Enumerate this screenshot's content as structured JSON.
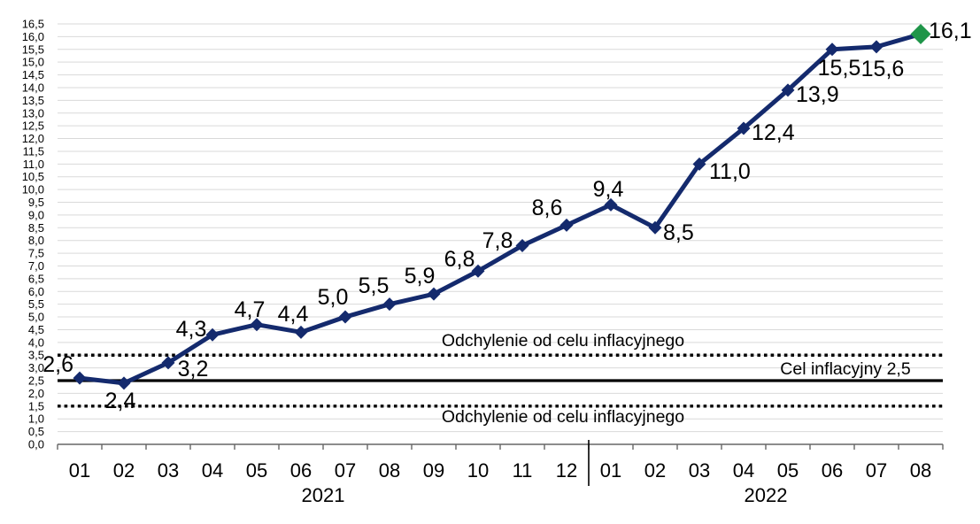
{
  "chart_data": {
    "type": "line",
    "title": "",
    "x_axis": {
      "months": [
        "01",
        "02",
        "03",
        "04",
        "05",
        "06",
        "07",
        "08",
        "09",
        "10",
        "11",
        "12",
        "01",
        "02",
        "03",
        "04",
        "05",
        "06",
        "07",
        "08"
      ],
      "year_groups": [
        {
          "label": "2021",
          "month_count": 12
        },
        {
          "label": "2022",
          "month_count": 8
        }
      ]
    },
    "y_axis": {
      "min": 0,
      "max": 16.5,
      "step": 0.5,
      "tick_labels_top_down": [
        "16,5",
        "16,0",
        "15,5",
        "15,0",
        "14,5",
        "14,0",
        "13,5",
        "13,0",
        "12,5",
        "12,0",
        "11,5",
        "11,0",
        "10,5",
        "10,0",
        "9,5",
        "9,0",
        "8,5",
        "8,0",
        "7,5",
        "7,0",
        "6,5",
        "6,0",
        "5,5",
        "5,0",
        "4,5",
        "4,0",
        "3,5",
        "3,0",
        "2,5",
        "2,0",
        "1,5",
        "1,0",
        "0,5",
        "0,0"
      ]
    },
    "series": [
      {
        "values": [
          2.6,
          2.4,
          3.2,
          4.3,
          4.7,
          4.4,
          5.0,
          5.5,
          5.9,
          6.8,
          7.8,
          8.6,
          9.4,
          8.5,
          11.0,
          12.4,
          13.9,
          15.5,
          15.6,
          16.1
        ],
        "point_labels": [
          "2,6",
          "2,4",
          "3,2",
          "4,3",
          "4,7",
          "4,4",
          "5,0",
          "5,5",
          "5,9",
          "6,8",
          "7,8",
          "8,6",
          "9,4",
          "8,5",
          "11,0",
          "12,4",
          "13,9",
          "15,5",
          "15,6",
          "16,1"
        ],
        "line_color": "#142a6d",
        "marker_color": "#142a6d",
        "last_marker_color": "#1f9549"
      }
    ],
    "reference_lines": [
      {
        "value": 3.5,
        "style": "dotted",
        "color": "#000000",
        "label": "Odchylenie od celu inflacyjnego",
        "label_side": "above"
      },
      {
        "value": 2.5,
        "style": "solid",
        "color": "#000000",
        "label": "Cel inflacyjny 2,5",
        "label_side": "above"
      },
      {
        "value": 1.5,
        "style": "dotted",
        "color": "#000000",
        "label": "Odchylenie od celu inflacyjnego",
        "label_side": "below"
      }
    ],
    "grid": true,
    "legend": "none",
    "colors": {
      "gridline": "#d9d9d9",
      "axis": "#666666",
      "separator": "#000000",
      "background": "#ffffff",
      "text": "#000000"
    },
    "decimal_separator": ","
  }
}
